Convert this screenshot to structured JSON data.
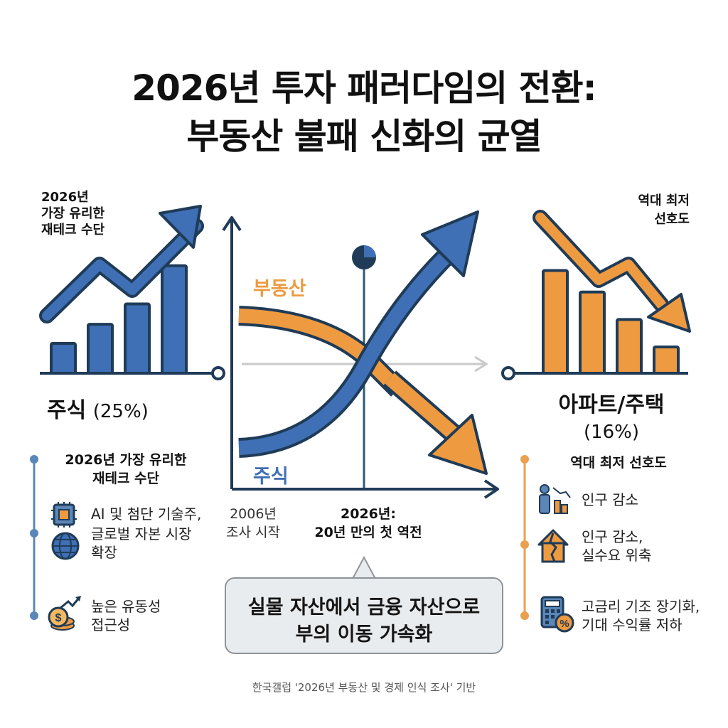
{
  "title": {
    "line1": "2026년 투자 패러다임의 전환:",
    "line2": "부동산 불패 신화의 균열"
  },
  "left": {
    "corner_label": [
      "2026년",
      "가장 유리한",
      "재테크 수단"
    ],
    "asset_name": "주식",
    "asset_pct": "(25%)",
    "list_heading": [
      "2026년 가장 유리한",
      "재테크 수단"
    ],
    "items": [
      {
        "icon": "chip-icon",
        "lines": [
          "AI 및 첨단 기술주,"
        ]
      },
      {
        "icon": "globe-icon",
        "lines": [
          "글로벌 자본 시장",
          "확장"
        ]
      },
      {
        "icon": "coin-growth-icon",
        "lines": [
          "높은 유동성",
          "접근성"
        ]
      }
    ],
    "bar_values": [
      0.25,
      0.41,
      0.58,
      0.9
    ]
  },
  "right": {
    "corner_label": [
      "역대 최저",
      "선호도"
    ],
    "asset_name": "아파트/주택",
    "asset_pct": "(16%)",
    "list_heading": "역대 최저 선호도",
    "items": [
      {
        "icon": "population-decline-icon",
        "lines": [
          "인구 감소"
        ]
      },
      {
        "icon": "cracked-house-icon",
        "lines": [
          "인구 감소,",
          "실수요 위축"
        ]
      },
      {
        "icon": "calculator-percent-icon",
        "lines": [
          "고금리 기조 장기화,",
          "기대 수익률 저하"
        ]
      }
    ],
    "bar_values": [
      0.86,
      0.68,
      0.45,
      0.22
    ]
  },
  "center": {
    "label_realestate": "부동산",
    "label_stock": "주식",
    "start_label": [
      "2006년",
      "조사 시작"
    ],
    "cross_label": [
      "2026년:",
      "20년 만의 첫 역전"
    ]
  },
  "callout": [
    "실물 자산에서 금융 자산으로",
    "부의 이동 가속화"
  ],
  "footer": "한국갤럽 '2026년 부동산 및 경제 인식 조사' 기반",
  "colors": {
    "stock_blue": "#3f6fb5",
    "realestate_orange": "#ed9a40",
    "navy": "#1f3b57",
    "axis": "#1f3b57",
    "timeline_blue": "#5b86b8",
    "timeline_orange": "#e9a150"
  }
}
